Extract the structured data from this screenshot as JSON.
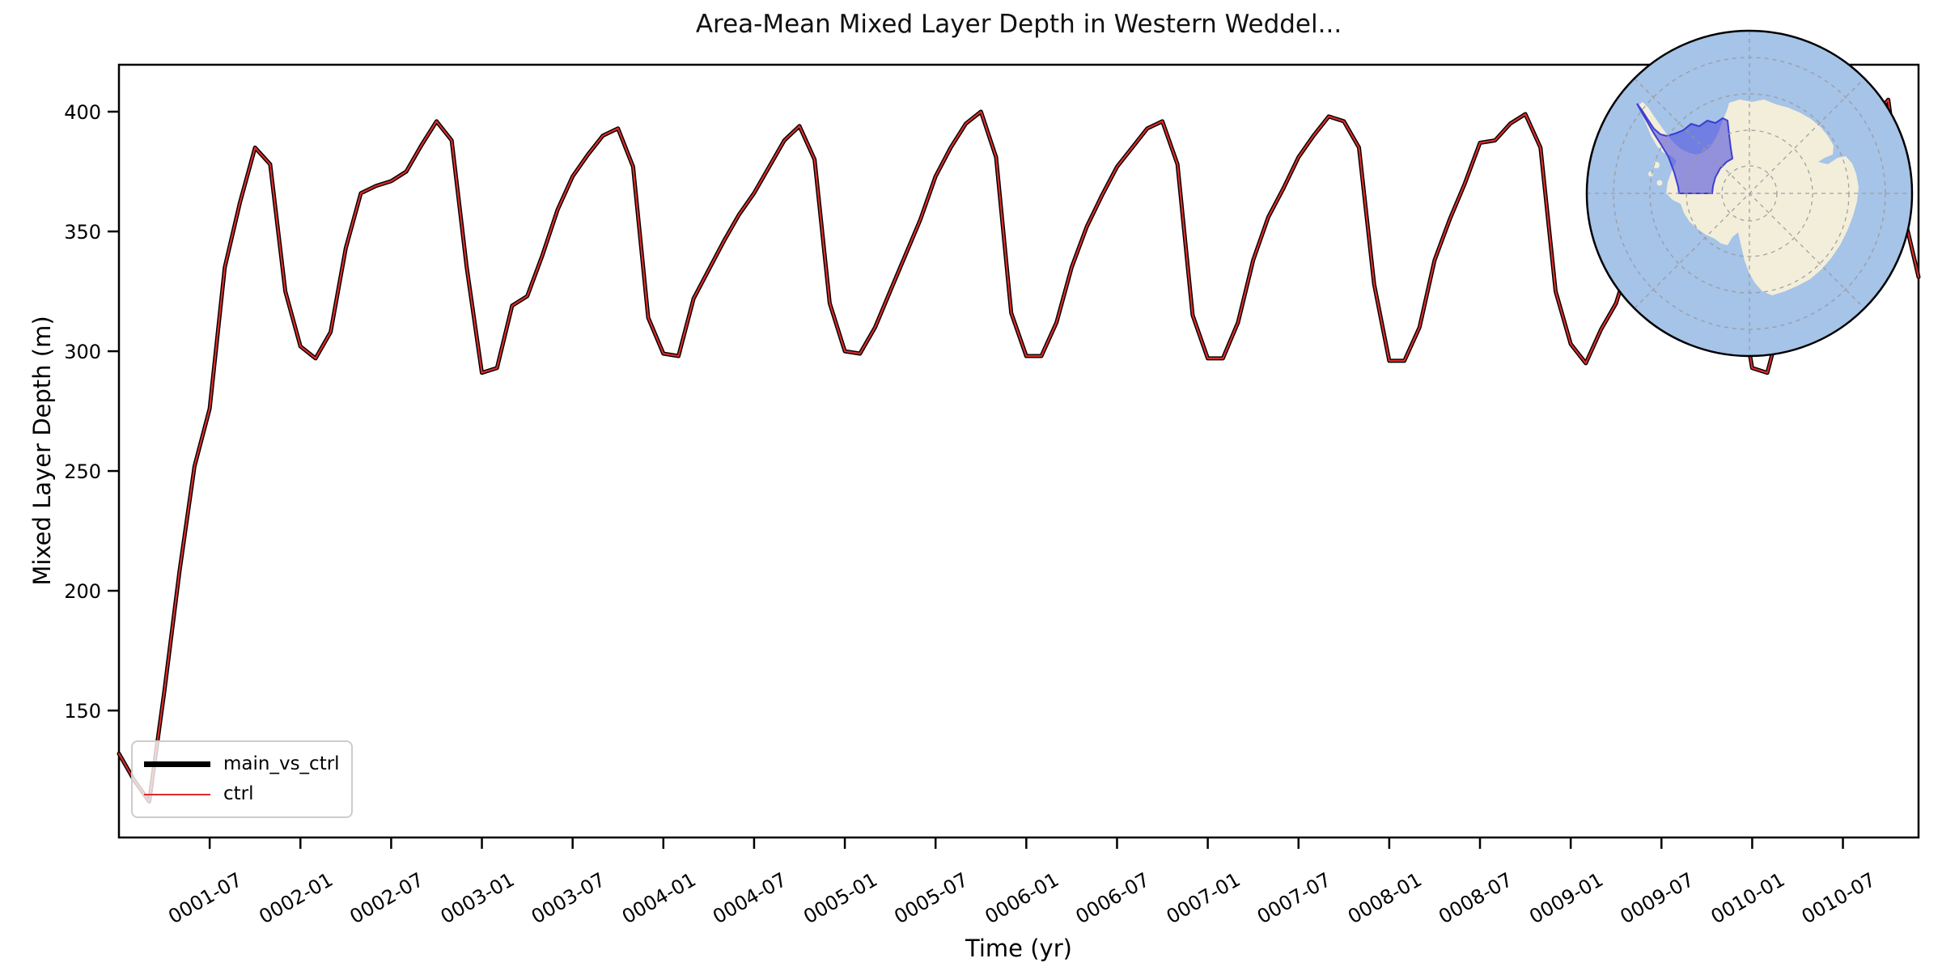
{
  "title": "Area-Mean Mixed Layer Depth in Western Weddel...",
  "axes": {
    "xlabel": "Time (yr)",
    "ylabel": "Mixed Layer Depth (m)"
  },
  "legend": {
    "entries": [
      {
        "label": "main_vs_ctrl",
        "color": "#000000",
        "linewidth": 7
      },
      {
        "label": "ctrl",
        "color": "#d92b2b",
        "linewidth": 2.5
      }
    ]
  },
  "inset_map": {
    "description": "south-polar-stereographic-antarctica-map",
    "highlight_region": "western-weddell-sea",
    "ocean_color": "#a6c3e8",
    "land_color": "#f2eeda",
    "highlight_fill": "#4646dc",
    "highlight_stroke": "#3232cf",
    "graticule_color": "#999999"
  },
  "chart_data": {
    "type": "line",
    "title": "Area-Mean Mixed Layer Depth in Western Weddel...",
    "xlabel": "Time (yr)",
    "ylabel": "Mixed Layer Depth (m)",
    "x_start": "0001-01",
    "x_end": "0010-12",
    "frequency": "monthly",
    "n_points": 120,
    "ylim": [
      97,
      419.6
    ],
    "y_ticks": [
      150,
      200,
      250,
      300,
      350,
      400
    ],
    "x_tick_labels": [
      "0001-07",
      "0002-01",
      "0002-07",
      "0003-01",
      "0003-07",
      "0004-01",
      "0004-07",
      "0005-01",
      "0005-07",
      "0006-01",
      "0006-07",
      "0007-01",
      "0007-07",
      "0008-01",
      "0008-07",
      "0009-01",
      "0009-07",
      "0010-01",
      "0010-07"
    ],
    "x_tick_month_step": 6,
    "x_first_tick_month_index": 6,
    "grid": false,
    "legend_position": "lower left",
    "series": [
      {
        "name": "main_vs_ctrl",
        "color": "#000000",
        "linewidth": 5,
        "values": [
          132,
          121,
          112,
          158,
          208,
          252,
          276,
          335,
          362,
          385,
          378,
          325,
          302,
          297,
          308,
          343,
          366,
          369,
          371,
          375,
          386,
          396,
          388,
          335,
          291,
          293,
          319,
          323,
          340,
          359,
          373,
          382,
          390,
          393,
          377,
          314,
          299,
          298,
          322,
          334,
          346,
          357,
          366,
          377,
          388,
          394,
          380,
          320,
          300,
          299,
          310,
          325,
          340,
          355,
          373,
          385,
          395,
          400,
          381,
          316,
          298,
          298,
          312,
          335,
          352,
          365,
          377,
          385,
          393,
          396,
          378,
          315,
          297,
          297,
          312,
          338,
          356,
          368,
          381,
          390,
          398,
          396,
          385,
          328,
          296,
          296,
          310,
          338,
          355,
          370,
          387,
          388,
          395,
          399,
          385,
          325,
          303,
          295,
          309,
          320,
          340,
          360,
          376,
          385,
          394,
          399,
          388,
          330,
          293,
          291,
          315,
          344,
          362,
          372,
          380,
          388,
          397,
          405,
          358,
          331
        ]
      },
      {
        "name": "ctrl",
        "color": "#d92b2b",
        "linewidth": 2.2,
        "note": "overlaps main_vs_ctrl exactly",
        "values": [
          132,
          121,
          112,
          158,
          208,
          252,
          276,
          335,
          362,
          385,
          378,
          325,
          302,
          297,
          308,
          343,
          366,
          369,
          371,
          375,
          386,
          396,
          388,
          335,
          291,
          293,
          319,
          323,
          340,
          359,
          373,
          382,
          390,
          393,
          377,
          314,
          299,
          298,
          322,
          334,
          346,
          357,
          366,
          377,
          388,
          394,
          380,
          320,
          300,
          299,
          310,
          325,
          340,
          355,
          373,
          385,
          395,
          400,
          381,
          316,
          298,
          298,
          312,
          335,
          352,
          365,
          377,
          385,
          393,
          396,
          378,
          315,
          297,
          297,
          312,
          338,
          356,
          368,
          381,
          390,
          398,
          396,
          385,
          328,
          296,
          296,
          310,
          338,
          355,
          370,
          387,
          388,
          395,
          399,
          385,
          325,
          303,
          295,
          309,
          320,
          340,
          360,
          376,
          385,
          394,
          399,
          388,
          330,
          293,
          291,
          315,
          344,
          362,
          372,
          380,
          388,
          397,
          405,
          358,
          331
        ]
      }
    ]
  }
}
